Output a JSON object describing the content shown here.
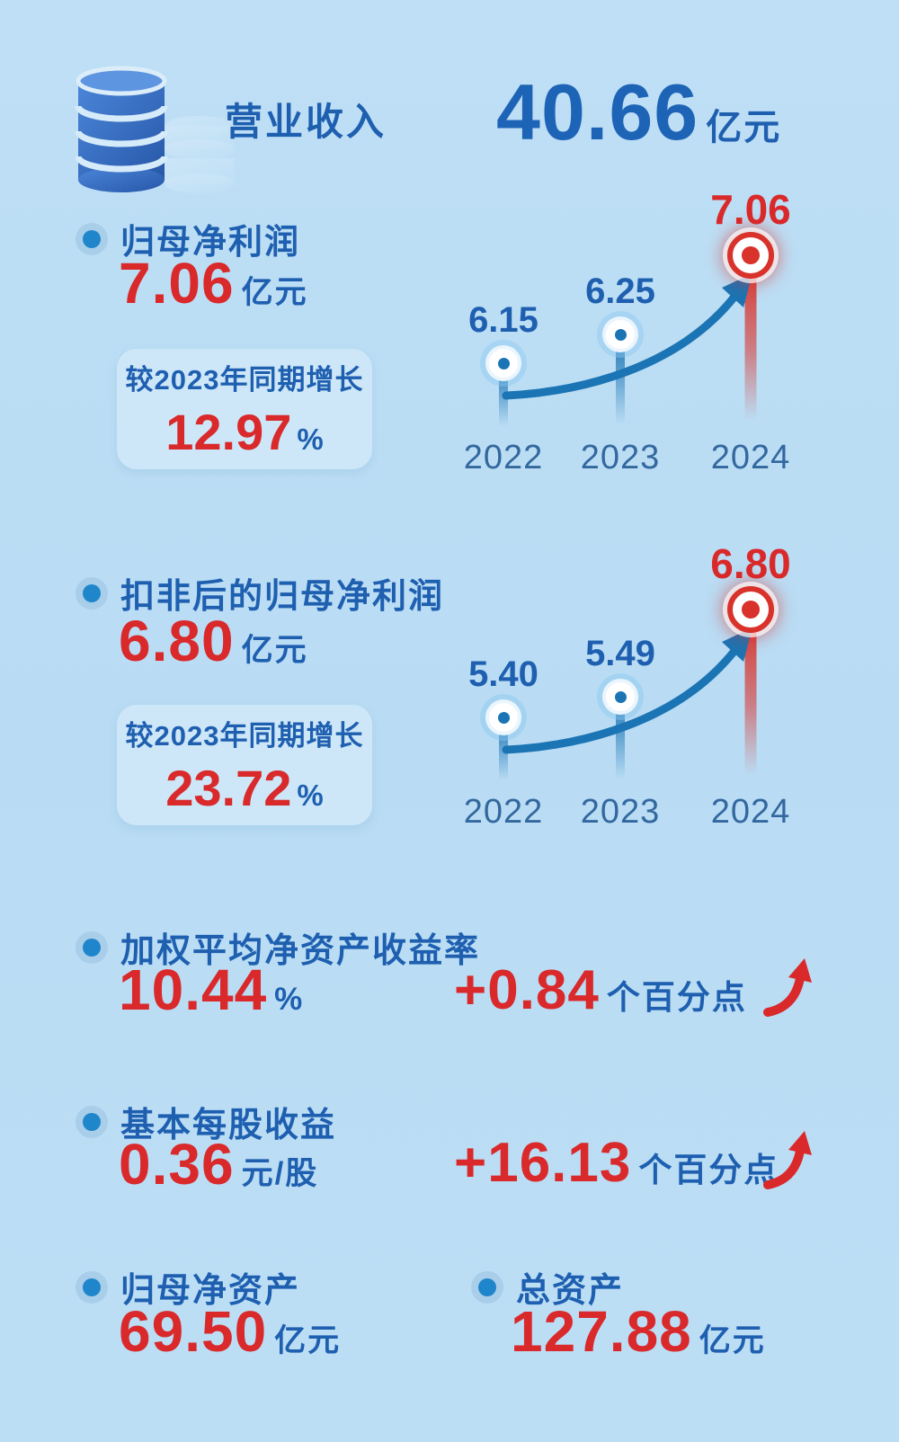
{
  "palette": {
    "background": "#bcdef5",
    "blue": "#1e5fb0",
    "red": "#d9292b",
    "chart_blue": "#1b74b4",
    "box_bg": "#cde7f8"
  },
  "icons": {
    "header": "coin-stack-database-icon",
    "bullet": "dot-bullet-icon",
    "delta": "curved-up-arrow-icon",
    "chart_arrow": "rising-curve-arrow-icon"
  },
  "header": {
    "label": "营业收入",
    "value": "40.66",
    "unit": "亿元"
  },
  "sections": {
    "net_profit": {
      "label": "归母净利润",
      "value": "7.06",
      "unit": "亿元",
      "growth_label": "较2023年同期增长",
      "growth_value": "12.97",
      "growth_unit": "%"
    },
    "non_gaap_profit": {
      "label": "扣非后的归母净利润",
      "value": "6.80",
      "unit": "亿元",
      "growth_label": "较2023年同期增长",
      "growth_value": "23.72",
      "growth_unit": "%"
    },
    "roe": {
      "label": "加权平均净资产收益率",
      "value": "10.44",
      "unit": "%",
      "delta": "+0.84",
      "delta_unit": "个百分点"
    },
    "eps": {
      "label": "基本每股收益",
      "value": "0.36",
      "unit": "元/股",
      "delta": "+16.13",
      "delta_unit": "个百分点"
    },
    "net_assets": {
      "label": "归母净资产",
      "value": "69.50",
      "unit": "亿元"
    },
    "total_assets": {
      "label": "总资产",
      "value": "127.88",
      "unit": "亿元"
    }
  },
  "chart_data": [
    {
      "type": "line",
      "title": "归母净利润",
      "ylabel": "亿元",
      "categories": [
        "2022",
        "2023",
        "2024"
      ],
      "values": [
        6.15,
        6.25,
        7.06
      ],
      "highlight_index": 2,
      "legend": "none",
      "grid": false
    },
    {
      "type": "line",
      "title": "扣非后的归母净利润",
      "ylabel": "亿元",
      "categories": [
        "2022",
        "2023",
        "2024"
      ],
      "values": [
        5.4,
        5.49,
        6.8
      ],
      "highlight_index": 2,
      "legend": "none",
      "grid": false
    }
  ]
}
